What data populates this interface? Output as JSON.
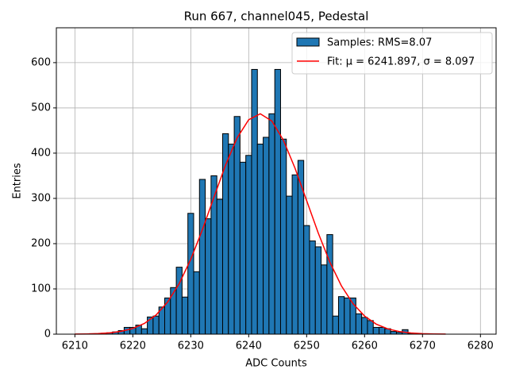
{
  "chart_data": {
    "type": "histogram",
    "title": "Run 667, channel045, Pedestal",
    "xlabel": "ADC Counts",
    "ylabel": "Entries",
    "name": "Samples: RMS=8.07",
    "color": "#1f77b4",
    "bins": [
      6212.5,
      6213.5,
      6214.5,
      6215.5,
      6216.5,
      6217.5,
      6218.5,
      6219.5,
      6220.5,
      6221.5,
      6222.5,
      6223.5,
      6224.5,
      6225.5,
      6226.5,
      6227.5,
      6228.5,
      6229.5,
      6230.5,
      6231.5,
      6232.5,
      6233.5,
      6234.5,
      6235.5,
      6236.5,
      6237.5,
      6238.5,
      6239.5,
      6240.5,
      6241.5,
      6242.5,
      6243.5,
      6244.5,
      6245.5,
      6246.5,
      6247.5,
      6248.5,
      6249.5,
      6250.5,
      6251.5,
      6252.5,
      6253.5,
      6254.5,
      6255.5,
      6256.5,
      6257.5,
      6258.5,
      6259.5,
      6260.5,
      6261.5,
      6262.5,
      6263.5,
      6264.5,
      6265.5,
      6266.5,
      6267.5,
      6268.5
    ],
    "values": [
      1,
      1,
      2,
      3,
      5,
      8,
      15,
      15,
      20,
      12,
      38,
      40,
      60,
      80,
      103,
      148,
      82,
      267,
      138,
      342,
      255,
      350,
      298,
      443,
      420,
      481,
      380,
      395,
      585,
      420,
      435,
      487,
      585,
      431,
      305,
      352,
      384,
      240,
      206,
      193,
      153,
      220,
      40,
      83,
      80,
      80,
      45,
      37,
      30,
      15,
      15,
      12,
      6,
      4,
      10,
      2
    ],
    "fit": {
      "type": "line",
      "name": "Fit: μ = 6241.897, σ = 8.097",
      "color": "#ff0000",
      "x": [
        6210,
        6212,
        6214,
        6216,
        6218,
        6220,
        6222,
        6224,
        6226,
        6228,
        6230,
        6232,
        6234,
        6236,
        6238,
        6240,
        6242,
        6244,
        6246,
        6248,
        6250,
        6252,
        6254,
        6256,
        6258,
        6260,
        6262,
        6264,
        6266,
        6268,
        6270,
        6272,
        6274
      ],
      "values": [
        0.2,
        0.5,
        1.3,
        2.9,
        6.3,
        12.6,
        23.8,
        42.3,
        70.9,
        111.6,
        165.4,
        230.6,
        302.6,
        373.5,
        433.7,
        473.8,
        487,
        470.9,
        428.3,
        366.6,
        295.2,
        223.6,
        159.3,
        106.8,
        67.4,
        40.0,
        22.3,
        11.7,
        5.8,
        2.7,
        1.2,
        0.5,
        0.2
      ]
    },
    "xlim": [
      6206.8,
      6282.7
    ],
    "ylim": [
      0,
      677
    ],
    "xticks": [
      6210,
      6220,
      6230,
      6240,
      6250,
      6260,
      6270,
      6280
    ],
    "yticks": [
      0,
      100,
      200,
      300,
      400,
      500,
      600
    ],
    "grid": true,
    "legend": "upper right"
  }
}
